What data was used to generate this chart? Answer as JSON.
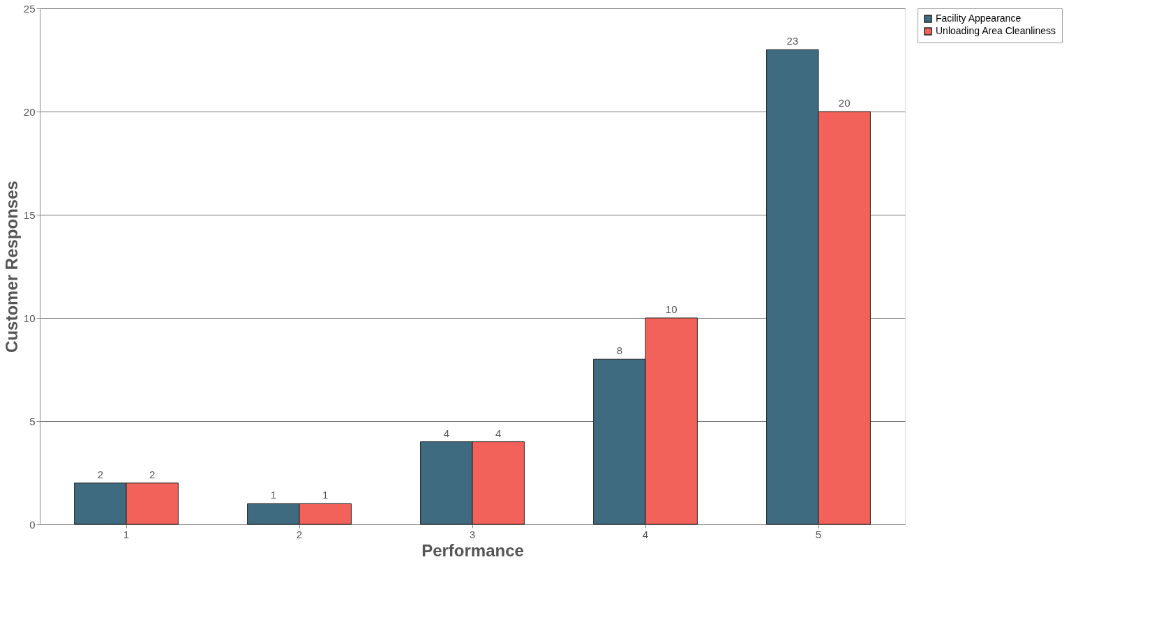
{
  "chart_data": {
    "type": "bar",
    "xlabel": "Performance",
    "ylabel": "Customer Responses",
    "categories": [
      "1",
      "2",
      "3",
      "4",
      "5"
    ],
    "series": [
      {
        "name": "Facility Appearance",
        "color": "#3e6b80",
        "values": [
          2,
          1,
          4,
          8,
          23
        ]
      },
      {
        "name": "Unloading Area Cleanliness",
        "color": "#f2625a",
        "values": [
          2,
          1,
          4,
          10,
          20
        ]
      }
    ],
    "ylim": [
      0,
      25
    ],
    "yticks": [
      0,
      5,
      10,
      15,
      20,
      25
    ],
    "grid": "y",
    "legend": "right",
    "data_labels": true
  }
}
